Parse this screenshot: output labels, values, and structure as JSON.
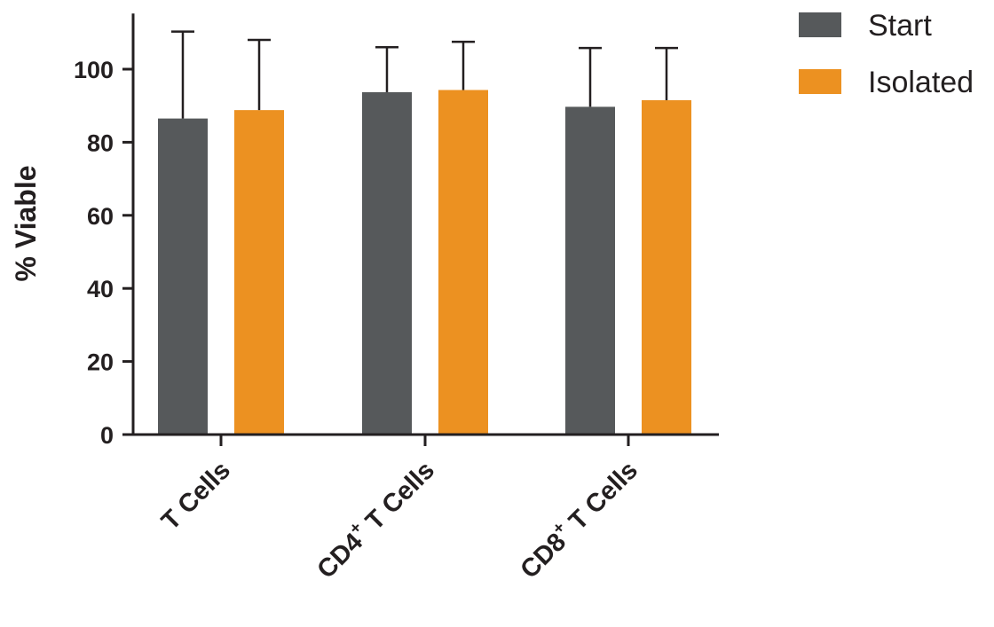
{
  "chart_data": {
    "type": "bar",
    "title": "",
    "ylabel": "% Viable",
    "xlabel": "",
    "ylim": [
      0,
      115
    ],
    "yticks": [
      0,
      20,
      40,
      60,
      80,
      100
    ],
    "categories": [
      {
        "main": "T Cells",
        "sup": "",
        "rest": ""
      },
      {
        "main": "CD4",
        "sup": "+",
        "rest": " T Cells"
      },
      {
        "main": "CD8",
        "sup": "+",
        "rest": " T Cells"
      }
    ],
    "series": [
      {
        "name": "Start",
        "color": "#56595b",
        "values": [
          86.5,
          93.7,
          89.7
        ],
        "error_upper": [
          110.3,
          106.0,
          105.8
        ]
      },
      {
        "name": "Isolated",
        "color": "#ec9121",
        "values": [
          88.8,
          94.3,
          91.5
        ],
        "error_upper": [
          108.0,
          107.5,
          105.8
        ]
      }
    ],
    "legend_position": "top-right",
    "grid": false,
    "error_bars": "upper-only"
  }
}
